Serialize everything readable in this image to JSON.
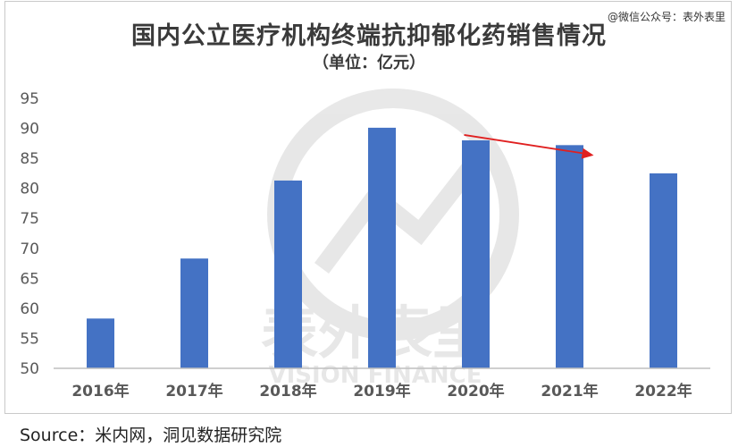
{
  "watermark_account": "@微信公众号：表外表里",
  "bg_logo_text": "表外表里",
  "bg_logo_subtext": "VISION FINANCE",
  "source": "Source：米内网，洞见数据研究院",
  "colors": {
    "bar": "#4472c4",
    "arrow": "#e02020",
    "axis": "#bfbfbf",
    "text": "#595959"
  },
  "chart_data": {
    "type": "bar",
    "title": "国内公立医疗机构终端抗抑郁化药销售情况",
    "subtitle": "（单位：亿元）",
    "xlabel": "",
    "ylabel": "",
    "categories": [
      "2016年",
      "2017年",
      "2018年",
      "2019年",
      "2020年",
      "2021年",
      "2022年"
    ],
    "series": [
      {
        "values": [
          58.3,
          68.3,
          81.3,
          90.1,
          88.0,
          87.2,
          82.5
        ]
      }
    ],
    "ylim": [
      50,
      95
    ],
    "yticks": [
      50,
      55,
      60,
      65,
      70,
      75,
      80,
      85,
      90,
      95
    ],
    "grid": false,
    "legend": "none",
    "annotations": [
      {
        "type": "arrow",
        "from_category": "2020年",
        "to_category": "2021年",
        "meaning": "declining trend"
      }
    ]
  }
}
